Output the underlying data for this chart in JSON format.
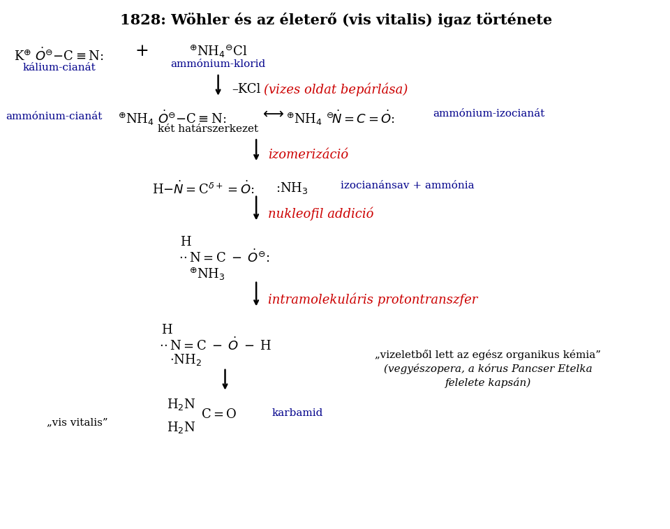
{
  "title": "1828: Wöhler és az életerő (vis vitalis) igaz története",
  "bg_color": "#ffffff",
  "blue": "#00008B",
  "red": "#CC0000",
  "black": "#000000",
  "label_vis": "„vis vitalis”",
  "label_quote1": "„vizeletből lett az egész organikus kémia”",
  "label_quote2": "(vegyészopera, a kórus Pancser Etelka",
  "label_quote3": "felelete kapsán)"
}
